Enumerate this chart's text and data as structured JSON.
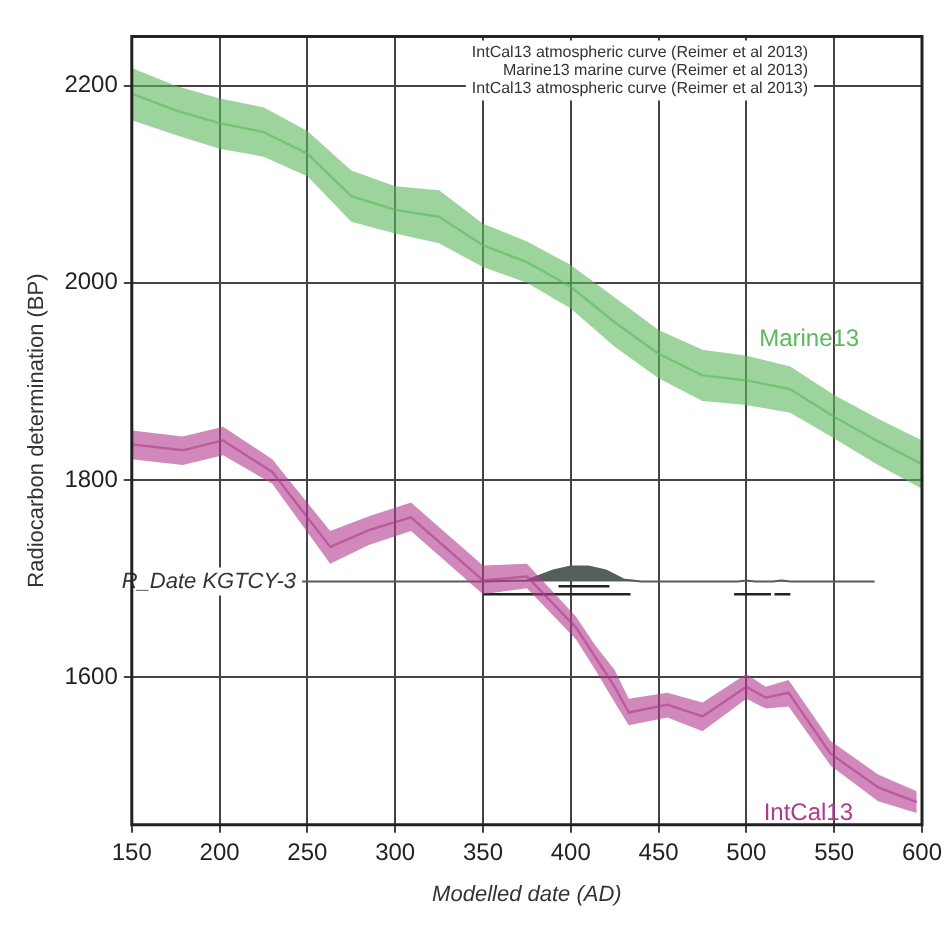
{
  "chart_data": {
    "type": "line",
    "xlabel": "Modelled date (AD)",
    "ylabel": "Radiocarbon determination (BP)",
    "xlim": [
      150,
      600
    ],
    "xticks": [
      150,
      200,
      250,
      300,
      350,
      400,
      450,
      500,
      550,
      600
    ],
    "ylim": [
      1450,
      2250
    ],
    "yticks": [
      1600,
      1800,
      2000,
      2200
    ],
    "grid": true,
    "series": [
      {
        "name": "Marine13",
        "color": "#5cb85c",
        "x": [
          150,
          175,
          200,
          225,
          250,
          275,
          300,
          325,
          350,
          375,
          400,
          425,
          450,
          475,
          500,
          525,
          550,
          575,
          600
        ],
        "lower": [
          2165,
          2150,
          2136,
          2128,
          2108,
          2062,
          2050,
          2040,
          2016,
          2000,
          1974,
          1935,
          1903,
          1880,
          1876,
          1868,
          1842,
          1815,
          1791
        ],
        "upper": [
          2218,
          2200,
          2187,
          2178,
          2154,
          2114,
          2098,
          2094,
          2060,
          2042,
          2018,
          1985,
          1952,
          1932,
          1926,
          1915,
          1886,
          1862,
          1840
        ],
        "values": [
          2192,
          2175,
          2162,
          2153,
          2131,
          2088,
          2074,
          2067,
          2038,
          2021,
          1996,
          1960,
          1928,
          1906,
          1901,
          1892,
          1864,
          1839,
          1816
        ]
      },
      {
        "name": "IntCal13",
        "color": "#b03a8c",
        "x": [
          150,
          179,
          202,
          230,
          263,
          285,
          309,
          350,
          375,
          403,
          414,
          425,
          433,
          455,
          475,
          500,
          511,
          524,
          548,
          575,
          597
        ],
        "lower": [
          1821,
          1815,
          1825,
          1796,
          1715,
          1734,
          1748,
          1684,
          1690,
          1638,
          1607,
          1574,
          1551,
          1559,
          1545,
          1578,
          1568,
          1570,
          1510,
          1474,
          1462
        ],
        "upper": [
          1850,
          1844,
          1854,
          1821,
          1748,
          1763,
          1777,
          1713,
          1715,
          1661,
          1632,
          1607,
          1578,
          1584,
          1574,
          1603,
          1590,
          1597,
          1535,
          1501,
          1484
        ],
        "values": [
          1836,
          1830,
          1840,
          1808,
          1732,
          1749,
          1762,
          1698,
          1702,
          1650,
          1620,
          1590,
          1564,
          1572,
          1560,
          1590,
          1579,
          1584,
          1522,
          1488,
          1473
        ]
      },
      {
        "type": "area",
        "name": "R_Date KGTCY-3",
        "color": "#555d5d",
        "x": [
          247,
          350,
          375,
          390,
          400,
          410,
          420,
          430,
          440,
          495,
          500,
          505,
          515,
          520,
          525,
          573
        ],
        "values": [
          1697,
          1697,
          1698,
          1708,
          1712,
          1712,
          1708,
          1699,
          1697,
          1697,
          1698,
          1697,
          1697,
          1698,
          1697,
          1697
        ]
      },
      {
        "color": "#222222",
        "x": [
          393,
          422
        ],
        "values": [
          1692,
          1692
        ]
      },
      {
        "color": "#222222",
        "x": [
          350,
          434,
          470,
          493,
          514,
          515,
          516,
          525
        ],
        "values": [
          1684,
          1684,
          null,
          1684,
          1684,
          null,
          1684,
          1684
        ]
      }
    ],
    "annotations": [
      "IntCal13 atmospheric curve (Reimer et al 2013)",
      "Marine13 marine curve (Reimer et al 2013)",
      "IntCal13 atmospheric curve (Reimer et al 2013)"
    ]
  }
}
